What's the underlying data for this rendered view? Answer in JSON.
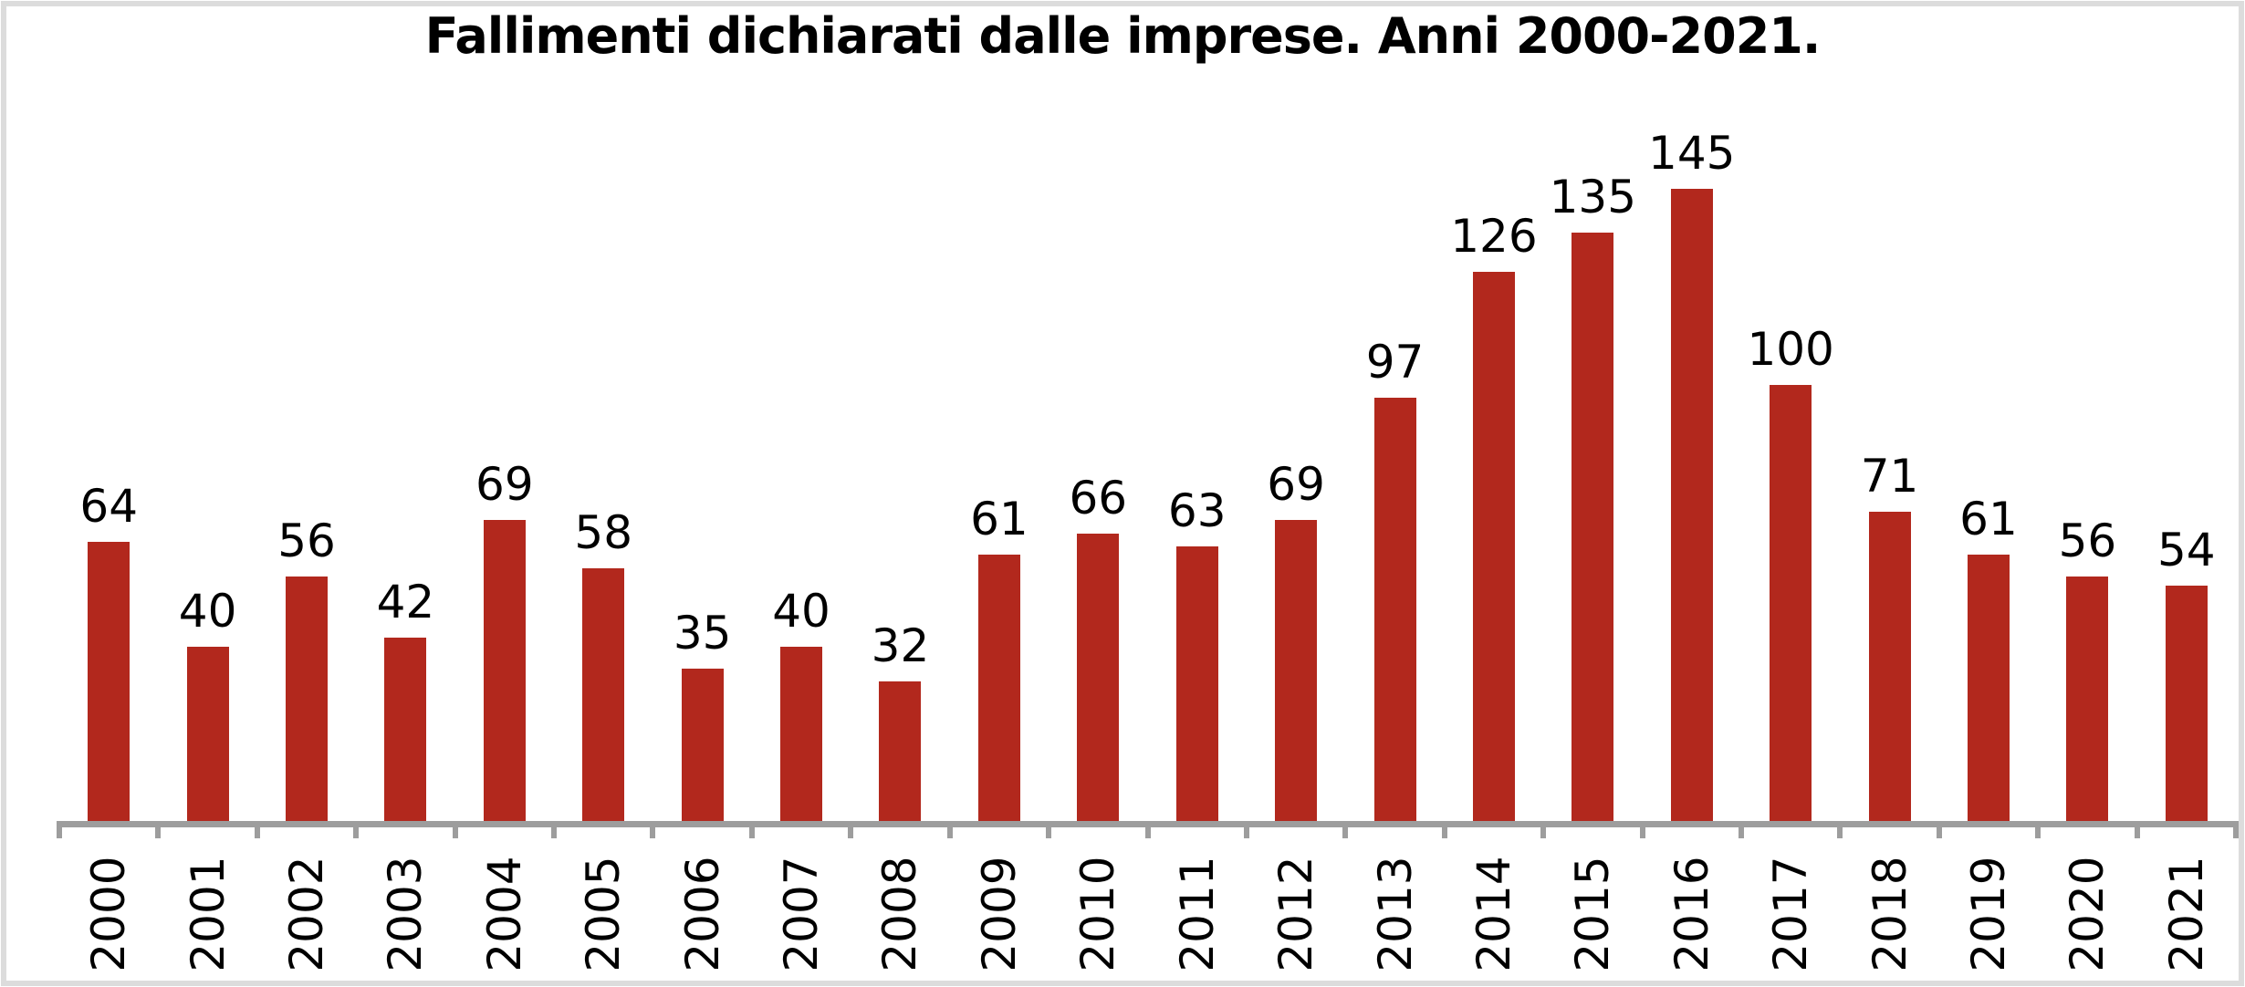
{
  "chart_data": {
    "type": "bar",
    "title": "Fallimenti dichiarati dalle imprese. Anni 2000-2021.",
    "categories": [
      "2000",
      "2001",
      "2002",
      "2003",
      "2004",
      "2005",
      "2006",
      "2007",
      "2008",
      "2009",
      "2010",
      "2011",
      "2012",
      "2013",
      "2014",
      "2015",
      "2016",
      "2017",
      "2018",
      "2019",
      "2020",
      "2021"
    ],
    "values": [
      64,
      40,
      56,
      42,
      69,
      58,
      35,
      40,
      32,
      61,
      66,
      63,
      69,
      97,
      126,
      135,
      145,
      100,
      71,
      61,
      56,
      54
    ],
    "series_name": "Fallimenti",
    "xlabel": "",
    "ylabel": "",
    "ylim": [
      0,
      160
    ],
    "grid": false,
    "legend": false,
    "data_labels": true,
    "x_tick_rotation": 90,
    "bar_color": "#B2281D",
    "axis_color": "#9D9D9D",
    "text_color": "#000000",
    "background_color": "#FFFFFF",
    "frame_border_color": "#DCDCDC"
  }
}
